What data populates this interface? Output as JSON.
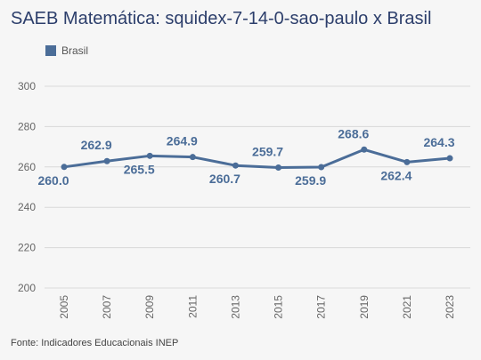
{
  "title": "SAEB Matemática: squidex-7-14-0-sao-paulo x Brasil",
  "legend": {
    "label": "Brasil",
    "color": "#4b6d98"
  },
  "footer": "Fonte: Indicadores Educacionais INEP",
  "chart_data": {
    "type": "line",
    "title": "SAEB Matemática: squidex-7-14-0-sao-paulo x Brasil",
    "xlabel": "",
    "ylabel": "",
    "categories": [
      "2005",
      "2007",
      "2009",
      "2011",
      "2013",
      "2015",
      "2017",
      "2019",
      "2021",
      "2023"
    ],
    "series": [
      {
        "name": "Brasil",
        "color": "#4b6d98",
        "values": [
          260.0,
          262.9,
          265.5,
          264.9,
          260.7,
          259.7,
          259.9,
          268.6,
          262.4,
          264.3
        ],
        "labels": [
          "260.0",
          "262.9",
          "265.5",
          "264.9",
          "260.7",
          "259.7",
          "259.9",
          "268.6",
          "262.4",
          "264.3"
        ]
      }
    ],
    "ylim": [
      200,
      300
    ],
    "yticks": [
      "200",
      "220",
      "240",
      "260",
      "280",
      "300"
    ],
    "grid": true,
    "legend_position": "top-left"
  }
}
